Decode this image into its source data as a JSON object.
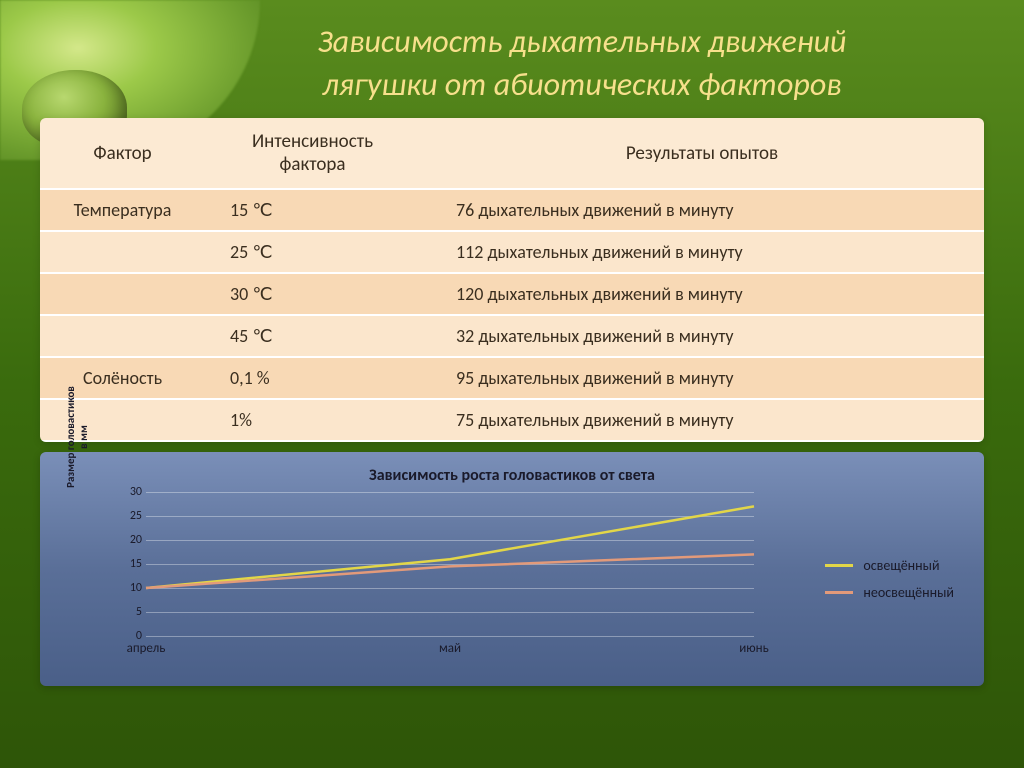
{
  "title": {
    "line1": "Зависимость дыхательных движений",
    "line2": "лягушки от абиотических факторов",
    "color": "#f7e08c",
    "fontsize": 32
  },
  "table": {
    "headers": {
      "c1": "Фактор",
      "c2": "Интенсивность фактора",
      "c3": "Результаты опытов"
    },
    "header_bg": "#fcead3",
    "row_bg_light": "#fbe6cc",
    "row_bg_dark": "#f8d9b5",
    "text_color": "#3a2e1f",
    "rows": [
      {
        "f": "Температура",
        "i": "15 ℃",
        "r": "76 дыхательных движений в минуту"
      },
      {
        "f": "",
        "i": "25 ℃",
        "r": "112 дыхательных движений в минуту"
      },
      {
        "f": "",
        "i": "30 ℃",
        "r": "120 дыхательных движений в минуту"
      },
      {
        "f": "",
        "i": "45 ℃",
        "r": "32 дыхательных движений в минуту"
      },
      {
        "f": "Солёность",
        "i": "0,1 %",
        "r": "95 дыхательных движений в минуту"
      },
      {
        "f": "",
        "i": "1%",
        "r": "75 дыхательных движений в минуту"
      }
    ]
  },
  "chart": {
    "type": "line",
    "title": "Зависимость роста головастиков от света",
    "title_fontsize": 16,
    "panel_gradient": [
      "#7a8fb8",
      "#5a6f98",
      "#4a5f88"
    ],
    "ylabel": "Размер головастиков\nв мм",
    "label_fontsize": 11,
    "ylim": [
      0,
      30
    ],
    "ytick_step": 5,
    "yticks": [
      0,
      5,
      10,
      15,
      20,
      25,
      30
    ],
    "xcategories": [
      "апрель",
      "май",
      "июнь"
    ],
    "grid_color": "rgba(255,255,255,0.35)",
    "text_color": "#1a1a2a",
    "series": [
      {
        "name": "освещённый",
        "color": "#e2d648",
        "width": 2.5,
        "values": [
          10,
          16,
          27
        ]
      },
      {
        "name": "неосвещённый",
        "color": "#e29a7a",
        "width": 2.5,
        "values": [
          10,
          14.5,
          17
        ]
      }
    ]
  }
}
